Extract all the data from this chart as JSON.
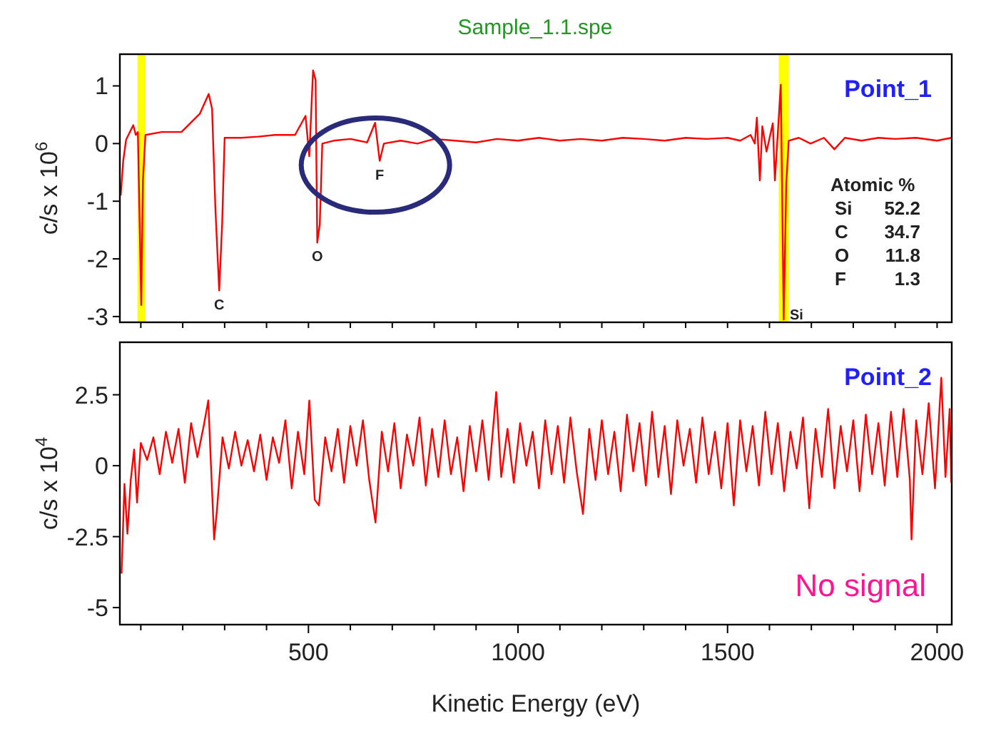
{
  "chart_data": [
    {
      "type": "line",
      "title": "Sample_1.1.spe",
      "ylabel": "c/s x 10$^{6}$",
      "xlim": [
        50,
        2035
      ],
      "ylim": [
        -3.1,
        1.55
      ],
      "yticks": [
        -3,
        -2,
        -1,
        0,
        1
      ],
      "xticks": [
        {
          "value": 100,
          "label": null
        },
        {
          "value": 200,
          "label": null
        },
        {
          "value": 300,
          "label": null
        },
        {
          "value": 400,
          "label": null
        },
        {
          "value": 500,
          "label": null
        },
        {
          "value": 600,
          "label": null
        },
        {
          "value": 700,
          "label": null
        },
        {
          "value": 800,
          "label": null
        },
        {
          "value": 900,
          "label": null
        },
        {
          "value": 1000,
          "label": null
        },
        {
          "value": 1100,
          "label": null
        },
        {
          "value": 1200,
          "label": null
        },
        {
          "value": 1300,
          "label": null
        },
        {
          "value": 1400,
          "label": null
        },
        {
          "value": 1500,
          "label": null
        },
        {
          "value": 1600,
          "label": null
        },
        {
          "value": 1700,
          "label": null
        },
        {
          "value": 1800,
          "label": null
        },
        {
          "value": 1900,
          "label": null
        },
        {
          "value": 2000,
          "label": null
        }
      ],
      "tick_labels": "y",
      "grid": false,
      "line_style": "solid",
      "marker": "none",
      "bands": [
        {
          "axis": "x",
          "from": 92,
          "to": 111,
          "color": "#ffff00"
        },
        {
          "axis": "x",
          "from": 1622,
          "to": 1646,
          "color": "#ffff00"
        }
      ],
      "series": [
        {
          "color": "#ff0000",
          "x": [
            52,
            58,
            65,
            82,
            88,
            93,
            101,
            105,
            111,
            150,
            197,
            241,
            262,
            270,
            278,
            287,
            294,
            300,
            340,
            380,
            420,
            468,
            493,
            502,
            511,
            517,
            521,
            527,
            533,
            560,
            600,
            640,
            659,
            670,
            680,
            720,
            760,
            800,
            850,
            900,
            950,
            1000,
            1050,
            1100,
            1150,
            1200,
            1250,
            1300,
            1350,
            1400,
            1450,
            1500,
            1530,
            1555,
            1565,
            1570,
            1577,
            1583,
            1593,
            1608,
            1613,
            1627,
            1634,
            1640,
            1646,
            1670,
            1698,
            1730,
            1755,
            1780,
            1820,
            1860,
            1900,
            1950,
            2000,
            2034
          ],
          "values": [
            -0.9,
            -0.3,
            0.07,
            0.32,
            0.15,
            0.2,
            -2.8,
            -0.65,
            0.15,
            0.2,
            0.2,
            0.52,
            0.86,
            0.6,
            -1.14,
            -2.55,
            -1.4,
            0.1,
            0.1,
            0.12,
            0.15,
            0.15,
            0.48,
            -0.22,
            1.27,
            1.1,
            -1.72,
            -1.4,
            0.0,
            0.05,
            0.08,
            0.02,
            0.36,
            -0.3,
            0.0,
            0.05,
            0.0,
            0.08,
            0.05,
            0.02,
            0.08,
            0.05,
            0.1,
            0.05,
            0.08,
            0.05,
            0.1,
            0.08,
            0.05,
            0.1,
            0.08,
            0.1,
            0.05,
            0.15,
            0.0,
            0.45,
            -0.64,
            0.3,
            -0.14,
            0.35,
            -0.64,
            1.02,
            -3.05,
            -0.7,
            0.05,
            0.1,
            0.0,
            0.1,
            -0.1,
            0.1,
            0.05,
            0.1,
            0.08,
            0.1,
            0.05,
            0.1
          ]
        }
      ],
      "annotations": [
        {
          "text": "C",
          "x": 287,
          "y": -2.55
        },
        {
          "text": "O",
          "x": 521,
          "y": -1.72
        },
        {
          "text": "F",
          "x": 670,
          "y": -0.3
        },
        {
          "text": "Si",
          "x": 1634,
          "y": -3.05
        },
        "Point_1",
        "Atomic %",
        "Si 52.2",
        "C 34.7",
        "O 11.8",
        "F 1.3"
      ]
    },
    {
      "type": "line",
      "xlabel": "Kinetic Energy (eV)",
      "ylabel": "c/s x 10$^{4}$",
      "xlim": [
        50,
        2035
      ],
      "ylim": [
        -5.6,
        4.35
      ],
      "yticks": [
        -5,
        -2.5,
        0,
        2.5
      ],
      "xticks": [
        {
          "value": 100,
          "label": null
        },
        {
          "value": 200,
          "label": null
        },
        {
          "value": 300,
          "label": null
        },
        {
          "value": 400,
          "label": null
        },
        500,
        {
          "value": 600,
          "label": null
        },
        {
          "value": 700,
          "label": null
        },
        {
          "value": 800,
          "label": null
        },
        {
          "value": 900,
          "label": null
        },
        1000,
        {
          "value": 1100,
          "label": null
        },
        {
          "value": 1200,
          "label": null
        },
        {
          "value": 1300,
          "label": null
        },
        {
          "value": 1400,
          "label": null
        },
        1500,
        {
          "value": 1600,
          "label": null
        },
        {
          "value": 1700,
          "label": null
        },
        {
          "value": 1800,
          "label": null
        },
        {
          "value": 1900,
          "label": null
        },
        2000
      ],
      "grid": false,
      "line_style": "solid",
      "marker": "none",
      "series": [
        {
          "color": "#ff0000",
          "x": [
            54,
            61,
            68,
            76,
            84,
            91,
            100,
            115,
            130,
            145,
            160,
            175,
            190,
            205,
            220,
            235,
            250,
            261,
            268,
            275,
            282,
            295,
            310,
            325,
            340,
            355,
            370,
            385,
            400,
            415,
            430,
            445,
            460,
            475,
            490,
            502,
            515,
            525,
            540,
            555,
            570,
            585,
            600,
            615,
            630,
            645,
            660,
            675,
            690,
            705,
            720,
            735,
            750,
            765,
            780,
            795,
            810,
            825,
            840,
            855,
            870,
            885,
            900,
            915,
            930,
            948,
            960,
            975,
            990,
            1005,
            1020,
            1035,
            1050,
            1065,
            1080,
            1095,
            1110,
            1125,
            1140,
            1155,
            1170,
            1185,
            1200,
            1215,
            1230,
            1245,
            1260,
            1275,
            1290,
            1305,
            1320,
            1335,
            1350,
            1365,
            1380,
            1395,
            1410,
            1425,
            1440,
            1455,
            1470,
            1485,
            1500,
            1515,
            1530,
            1545,
            1560,
            1575,
            1590,
            1605,
            1620,
            1635,
            1650,
            1665,
            1680,
            1695,
            1710,
            1725,
            1740,
            1755,
            1770,
            1785,
            1800,
            1815,
            1830,
            1845,
            1860,
            1875,
            1890,
            1905,
            1920,
            1935,
            1939,
            1950,
            1965,
            1980,
            1995,
            2010,
            2020,
            2030,
            2034
          ],
          "values": [
            -3.8,
            -0.64,
            -2.4,
            -0.5,
            0.57,
            -1.3,
            0.8,
            0.2,
            1.0,
            -0.3,
            1.2,
            0.1,
            1.3,
            -0.6,
            1.5,
            0.3,
            1.4,
            2.3,
            -0.2,
            -2.6,
            -1.5,
            1.0,
            -0.1,
            1.2,
            0.0,
            0.9,
            -0.2,
            1.1,
            -0.5,
            1.0,
            0.1,
            1.6,
            -0.8,
            1.2,
            -0.3,
            2.3,
            -1.2,
            -1.4,
            1.0,
            -0.2,
            1.3,
            -0.6,
            1.4,
            0.0,
            1.6,
            -0.5,
            -2.0,
            1.2,
            -0.2,
            1.5,
            -0.8,
            1.1,
            0.0,
            1.7,
            -0.7,
            1.3,
            -0.4,
            1.6,
            -0.3,
            1.0,
            -0.9,
            1.4,
            -0.2,
            1.6,
            -0.5,
            2.6,
            -0.4,
            1.3,
            -0.6,
            1.5,
            0.0,
            1.2,
            -0.8,
            1.6,
            -0.3,
            1.4,
            -0.6,
            1.7,
            -0.2,
            -1.7,
            1.3,
            -0.5,
            1.6,
            -0.3,
            1.2,
            -0.9,
            1.8,
            -0.2,
            1.5,
            -0.7,
            1.9,
            -0.4,
            1.4,
            -1.0,
            1.6,
            0.0,
            1.3,
            -0.6,
            1.7,
            -0.3,
            1.2,
            -0.8,
            1.5,
            -1.4,
            1.6,
            -0.2,
            1.4,
            -0.7,
            1.9,
            -0.3,
            1.5,
            -0.9,
            1.2,
            -0.1,
            1.7,
            -1.5,
            1.3,
            -0.4,
            2.0,
            -0.8,
            1.4,
            -0.2,
            1.6,
            -0.9,
            1.8,
            -0.3,
            1.5,
            -0.7,
            1.9,
            -0.4,
            2.0,
            -0.5,
            -2.6,
            1.6,
            -0.3,
            2.2,
            -0.8,
            3.1,
            -0.4,
            2.0,
            -0.6
          ]
        }
      ],
      "annotations": [
        "Point_2",
        "No signal"
      ]
    }
  ]
}
